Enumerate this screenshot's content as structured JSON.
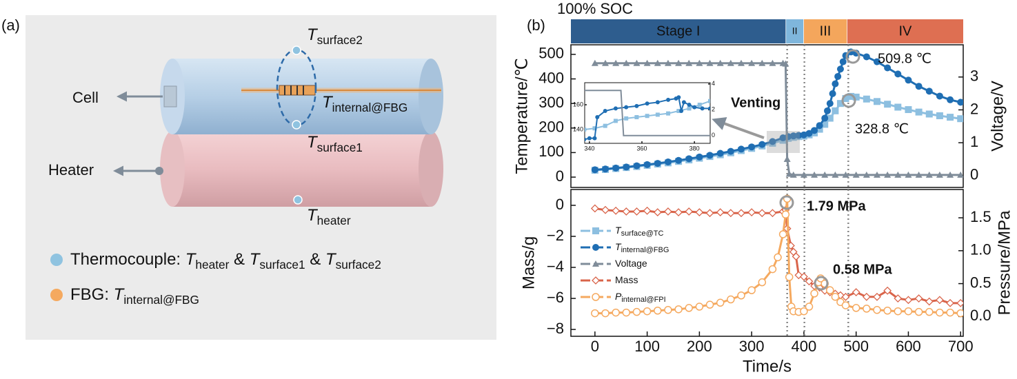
{
  "panel_a": {
    "label": "(a)",
    "cell": "Cell",
    "heater": "Heater",
    "labels": [
      {
        "text": "T",
        "sub": "surface2"
      },
      {
        "text": "T",
        "sub": "internal@FBG"
      },
      {
        "text": "T",
        "sub": "surface1"
      },
      {
        "text": "T",
        "sub": "heater"
      }
    ],
    "legend": [
      [
        {
          "text": "Thermocouple: "
        },
        {
          "text": "T",
          "sub": "heater"
        },
        {
          "text": " & "
        },
        {
          "text": "T",
          "sub": "surface1"
        },
        {
          "text": " & "
        },
        {
          "text": "T",
          "sub": "surface2"
        }
      ],
      [
        {
          "text": "FBG: "
        },
        {
          "text": "T",
          "sub": "internal@FBG"
        }
      ]
    ]
  },
  "panel_b": {
    "label": "(b)",
    "subtitle": "100% SOC"
  },
  "chart_data": [
    {
      "type": "line",
      "ylabel": "Temperature/℃",
      "y2label": "Voltage/V",
      "xlim": [
        -46,
        705
      ],
      "ylim": [
        -42,
        539
      ],
      "y2lim": [
        -0.36,
        3.98
      ],
      "yticks": [
        0,
        100,
        200,
        300,
        400,
        500
      ],
      "y2ticks": [
        0,
        1,
        2,
        3
      ],
      "vlines": [
        368,
        401,
        485
      ],
      "stages": [
        {
          "label": "Stage I",
          "range": [
            -46,
            365
          ],
          "color": "#2e5d8e"
        },
        {
          "label": "II",
          "range": [
            366,
            399
          ],
          "color": "#7fb6dc"
        },
        {
          "label": "III",
          "range": [
            400,
            482
          ],
          "color": "#f4a65c"
        },
        {
          "label": "IV",
          "range": [
            483,
            705
          ],
          "color": "#de6f52"
        }
      ],
      "annotations": [
        "509.8 ℃",
        "328.8 ℃",
        "Venting"
      ],
      "series": [
        {
          "name": "T",
          "name_sub": "surface@TC",
          "color": "#8dbfe0",
          "marker": "square",
          "x": [
            0,
            20,
            40,
            60,
            80,
            100,
            120,
            140,
            160,
            180,
            200,
            220,
            240,
            260,
            280,
            300,
            320,
            340,
            360,
            370,
            380,
            390,
            400,
            410,
            420,
            430,
            440,
            450,
            460,
            470,
            480,
            490,
            500,
            520,
            540,
            560,
            580,
            600,
            620,
            640,
            660,
            680,
            700
          ],
          "values": [
            28,
            31,
            35,
            39,
            43,
            48,
            53,
            58,
            64,
            70,
            77,
            84,
            91,
            99,
            108,
            117,
            127,
            138,
            150,
            158,
            162,
            165,
            167,
            172,
            180,
            195,
            215,
            240,
            270,
            300,
            320,
            328.8,
            326,
            318,
            308,
            297,
            285,
            275,
            265,
            257,
            250,
            244,
            238
          ]
        },
        {
          "name": "T",
          "name_sub": "internal@FBG",
          "color": "#1f6eb3",
          "marker": "circle",
          "x": [
            0,
            20,
            40,
            60,
            80,
            100,
            120,
            140,
            160,
            180,
            200,
            220,
            240,
            260,
            280,
            300,
            320,
            340,
            360,
            370,
            380,
            390,
            400,
            410,
            420,
            430,
            440,
            445,
            450,
            455,
            460,
            465,
            470,
            475,
            480,
            490,
            500,
            520,
            540,
            560,
            580,
            600,
            620,
            640,
            660,
            680,
            700
          ],
          "values": [
            30,
            33,
            37,
            41,
            46,
            51,
            56,
            62,
            68,
            75,
            82,
            89,
            97,
            105,
            114,
            123,
            133,
            145,
            160,
            165,
            168,
            170,
            172,
            178,
            190,
            210,
            240,
            270,
            300,
            340,
            380,
            410,
            440,
            470,
            495,
            509.8,
            505,
            490,
            470,
            445,
            420,
            395,
            370,
            350,
            330,
            315,
            305
          ]
        },
        {
          "name": "Voltage",
          "color": "#7f8c99",
          "marker": "triangle",
          "axis": "y2",
          "x": [
            0,
            20,
            40,
            60,
            80,
            100,
            120,
            140,
            160,
            180,
            200,
            220,
            240,
            260,
            280,
            300,
            320,
            340,
            360,
            365,
            368,
            372,
            380,
            400,
            420,
            440,
            460,
            480,
            500,
            520,
            540,
            560,
            580,
            600,
            620,
            640,
            660,
            680,
            700
          ],
          "values": [
            3.42,
            3.42,
            3.42,
            3.42,
            3.42,
            3.42,
            3.42,
            3.42,
            3.42,
            3.42,
            3.42,
            3.42,
            3.42,
            3.42,
            3.42,
            3.42,
            3.42,
            3.42,
            3.42,
            3.4,
            0.5,
            0.05,
            0.02,
            0.02,
            0.02,
            0.02,
            0.02,
            0.02,
            0.02,
            0.02,
            0.02,
            0.02,
            0.02,
            0.02,
            0.02,
            0.02,
            0.02,
            0.02,
            0.02
          ]
        }
      ]
    },
    {
      "type": "line",
      "xlabel": "Time/s",
      "ylabel": "Mass/g",
      "y2label": "Pressure/MPa",
      "xlim": [
        -46,
        705
      ],
      "ylim": [
        -8.44,
        1.02
      ],
      "y2lim": [
        -0.3,
        1.93
      ],
      "xticks": [
        0,
        100,
        200,
        300,
        400,
        500,
        600,
        700
      ],
      "yticks": [
        0,
        {
          "value": -2,
          "label": "−2"
        },
        {
          "value": -4,
          "label": "−4"
        },
        {
          "value": -6,
          "label": "−6"
        },
        {
          "value": -8,
          "label": "−8"
        }
      ],
      "y2ticks": [
        {
          "value": 0,
          "label": "0.0"
        },
        {
          "value": 0.5,
          "label": "0.5"
        },
        {
          "value": 1,
          "label": "1.0"
        },
        {
          "value": 1.5,
          "label": "1.5"
        }
      ],
      "vlines": [
        368,
        401,
        485
      ],
      "legend": "left",
      "annotations": [
        "1.79 MPa",
        "0.58 MPa"
      ],
      "series": [
        {
          "name": "Mass",
          "color": "#d9644a",
          "marker": "diamond",
          "x": [
            0,
            20,
            40,
            60,
            80,
            100,
            120,
            140,
            160,
            180,
            200,
            220,
            240,
            260,
            280,
            300,
            320,
            340,
            360,
            365,
            368,
            375,
            380,
            385,
            390,
            400,
            410,
            420,
            430,
            440,
            450,
            460,
            470,
            480,
            500,
            520,
            540,
            560,
            580,
            600,
            620,
            640,
            660,
            680,
            700
          ],
          "values": [
            -0.2,
            -0.3,
            -0.35,
            -0.4,
            -0.4,
            -0.35,
            -0.45,
            -0.4,
            -0.45,
            -0.4,
            -0.45,
            -0.5,
            -0.45,
            -0.5,
            -0.5,
            -0.45,
            -0.5,
            -0.5,
            -0.4,
            -0.3,
            -1.5,
            -2.6,
            -3.0,
            -3.3,
            -4.5,
            -4.6,
            -4.9,
            -5.2,
            -5.3,
            -5.5,
            -5.6,
            -5.7,
            -5.8,
            -5.9,
            -5.6,
            -5.9,
            -5.9,
            -5.5,
            -6.0,
            -6.1,
            -6.0,
            -6.2,
            -6.1,
            -6.3,
            -6.3
          ]
        },
        {
          "name": "P",
          "name_sub": "internal@FPI",
          "color": "#f5a95f",
          "marker": "open-circle",
          "axis": "y2",
          "x": [
            0,
            20,
            40,
            60,
            80,
            100,
            120,
            140,
            160,
            180,
            200,
            220,
            240,
            260,
            280,
            300,
            320,
            340,
            350,
            360,
            365,
            368,
            372,
            376,
            380,
            390,
            400,
            410,
            420,
            428,
            432,
            440,
            450,
            460,
            470,
            480,
            500,
            520,
            540,
            560,
            580,
            600,
            620,
            640,
            660,
            680,
            700
          ],
          "values": [
            0.05,
            0.05,
            0.06,
            0.06,
            0.07,
            0.08,
            0.09,
            0.1,
            0.11,
            0.13,
            0.15,
            0.18,
            0.21,
            0.26,
            0.32,
            0.4,
            0.52,
            0.72,
            0.9,
            1.25,
            1.55,
            1.79,
            0.6,
            0.15,
            0.08,
            0.07,
            0.08,
            0.15,
            0.35,
            0.52,
            0.58,
            0.5,
            0.4,
            0.3,
            0.22,
            0.17,
            0.13,
            0.12,
            0.1,
            0.09,
            0.08,
            0.08,
            0.07,
            0.07,
            0.06,
            0.06,
            0.05
          ]
        }
      ]
    },
    {
      "type": "line",
      "xlim": [
        338.2,
        386
      ],
      "ylim": [
        128.9,
        177.8
      ],
      "y2lim": [
        -0.6,
        4.1
      ],
      "xticks": [
        340,
        360,
        380
      ],
      "yticks": [
        140,
        160
      ],
      "y2ticks": [
        0,
        2,
        4
      ],
      "series": [
        {
          "color": "#8dbfe0",
          "marker": "square",
          "x": [
            338,
            342,
            346,
            350,
            354,
            358,
            362,
            366,
            370,
            374,
            378,
            382,
            386
          ],
          "values": [
            140,
            141,
            143,
            147,
            149,
            150,
            151,
            152,
            153,
            155,
            157,
            160,
            163
          ]
        },
        {
          "color": "#1f6eb3",
          "marker": "circle",
          "x": [
            338,
            340,
            342,
            343,
            346,
            350,
            354,
            358,
            362,
            366,
            370,
            373,
            374,
            375,
            376,
            378,
            380,
            383,
            386
          ],
          "values": [
            132,
            133,
            133,
            150,
            155,
            157,
            158,
            159,
            161,
            162,
            164,
            165,
            166,
            155,
            162,
            160,
            158,
            157,
            157
          ]
        },
        {
          "color": "#7f8c99",
          "marker": "none",
          "axis": "y2",
          "x": [
            338,
            342,
            346,
            350,
            352,
            353,
            356,
            360,
            366,
            372,
            378,
            386
          ],
          "values": [
            3.5,
            3.5,
            3.5,
            3.5,
            3.5,
            0,
            0,
            0,
            0,
            0,
            0,
            0
          ]
        }
      ]
    }
  ]
}
